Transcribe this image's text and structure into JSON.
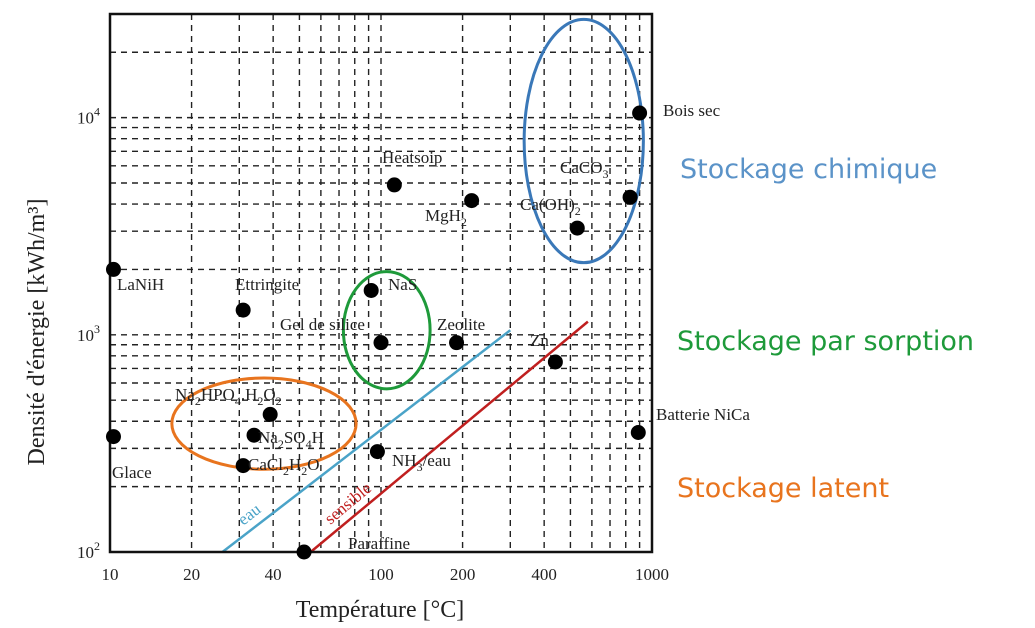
{
  "chart_data": {
    "type": "scatter",
    "title": "",
    "xlabel": "Température [°C]",
    "ylabel": "Densité d'énergie [kWh/m³]",
    "xscale": "log",
    "yscale": "log",
    "xlim": [
      10,
      1000
    ],
    "ylim": [
      100,
      30000
    ],
    "x_ticks": [
      {
        "value": 10,
        "label": "10"
      },
      {
        "value": 20,
        "label": "20"
      },
      {
        "value": 40,
        "label": "40"
      },
      {
        "value": 100,
        "label": "100"
      },
      {
        "value": 200,
        "label": "200"
      },
      {
        "value": 400,
        "label": "400"
      },
      {
        "value": 1000,
        "label": "1000"
      }
    ],
    "y_ticks": [
      {
        "value": 100,
        "base": "10",
        "exp": "2"
      },
      {
        "value": 1000,
        "base": "10",
        "exp": "3"
      },
      {
        "value": 10000,
        "base": "10",
        "exp": "4"
      }
    ],
    "grid": true,
    "points": [
      {
        "label": "LaNiH",
        "x": 10.3,
        "y": 2000
      },
      {
        "label": "Glace",
        "x": 10.3,
        "y": 340
      },
      {
        "label": "Ettringite",
        "x": 31,
        "y": 1300
      },
      {
        "label": "Na2HPO4.H2O2",
        "x": 39,
        "y": 430
      },
      {
        "label": "Na2SO4H",
        "x": 34,
        "y": 345
      },
      {
        "label": "CaCl2H2O",
        "x": 31,
        "y": 250
      },
      {
        "label": "Paraffine",
        "x": 52,
        "y": 100
      },
      {
        "label": "NaS",
        "x": 92,
        "y": 1600
      },
      {
        "label": "Gel de silice",
        "x": 100,
        "y": 920
      },
      {
        "label": "NH3/eau",
        "x": 97,
        "y": 290
      },
      {
        "label": "Zeolite",
        "x": 190,
        "y": 920
      },
      {
        "label": "Heatsoip",
        "x": 112,
        "y": 4900
      },
      {
        "label": "MgH2",
        "x": 216,
        "y": 4150
      },
      {
        "label": "Ca(OH)2",
        "x": 530,
        "y": 3100
      },
      {
        "label": "CaCO3",
        "x": 830,
        "y": 4300
      },
      {
        "label": "Bois sec",
        "x": 900,
        "y": 10500
      },
      {
        "label": "Zn",
        "x": 440,
        "y": 750
      },
      {
        "label": "Batterie NiCa",
        "x": 890,
        "y": 355
      }
    ],
    "lines": [
      {
        "label": "eau",
        "color": "#4aa3c8",
        "from": [
          26,
          100
        ],
        "to": [
          300,
          1050
        ]
      },
      {
        "label": "sensible",
        "color": "#c01f1f",
        "from": [
          55,
          100
        ],
        "to": [
          580,
          1150
        ]
      }
    ],
    "regions": [
      {
        "label": "Stockage chimique",
        "color": "#3a78b8",
        "cx": 560,
        "cy": 7800,
        "rx_decades": 0.22,
        "ry_decades": 0.56
      },
      {
        "label": "Stockage par sorption",
        "color": "#1e9a3a",
        "cx": 105,
        "cy": 1050,
        "rx_decades": 0.16,
        "ry_decades": 0.27
      },
      {
        "label": "Stockage latent",
        "color": "#e8741e",
        "cx": 37,
        "cy": 390,
        "rx_decades": 0.34,
        "ry_decades": 0.21
      }
    ],
    "annotations": [
      {
        "text": "Stockage chimique",
        "color": "#5b93c8"
      },
      {
        "text": "Stockage par sorption",
        "color": "#1e9a3a"
      },
      {
        "text": "Stockage latent",
        "color": "#e8741e"
      }
    ]
  }
}
